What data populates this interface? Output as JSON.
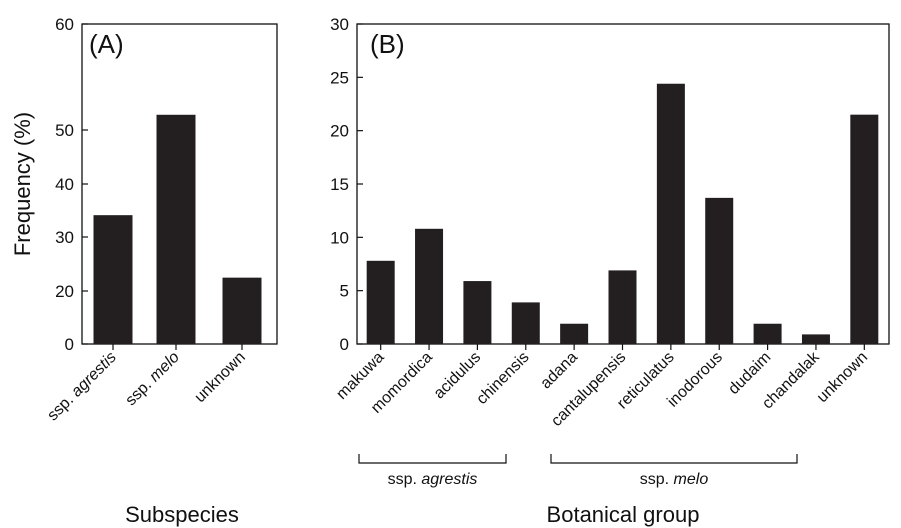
{
  "chart_data": [
    {
      "type": "bar",
      "panel_label": "(A)",
      "ylabel": "Frequency (%)",
      "xlabel": "Subspecies",
      "ylim": [
        0,
        60
      ],
      "yticks": [
        "0",
        "20",
        "30",
        "40",
        "50",
        "60"
      ],
      "categories": [
        {
          "prefix": "ssp. ",
          "name": "agrestis"
        },
        {
          "prefix": "ssp. ",
          "name": "melo"
        },
        {
          "prefix": "",
          "name": "unknown"
        }
      ],
      "values": [
        34.2,
        53,
        22.5
      ],
      "bar_color": "#231f20"
    },
    {
      "type": "bar",
      "panel_label": "(B)",
      "xlabel": "Botanical group",
      "ylim": [
        0,
        30
      ],
      "yticks": [
        "0",
        "5",
        "10",
        "15",
        "20",
        "25",
        "30"
      ],
      "categories": [
        "makuwa",
        "momordica",
        "acidulus",
        "chinensis",
        "adana",
        "cantalupensis",
        "reticulatus",
        "inodorous",
        "dudaim",
        "chandalak",
        "unknown"
      ],
      "values": [
        7.8,
        10.8,
        5.9,
        3.9,
        1.9,
        6.9,
        24.4,
        13.7,
        1.9,
        0.9,
        21.5
      ],
      "bar_color": "#231f20",
      "groups": [
        {
          "prefix": "ssp. ",
          "name": "agrestis"
        },
        {
          "prefix": "ssp. ",
          "name": "melo"
        }
      ]
    }
  ]
}
